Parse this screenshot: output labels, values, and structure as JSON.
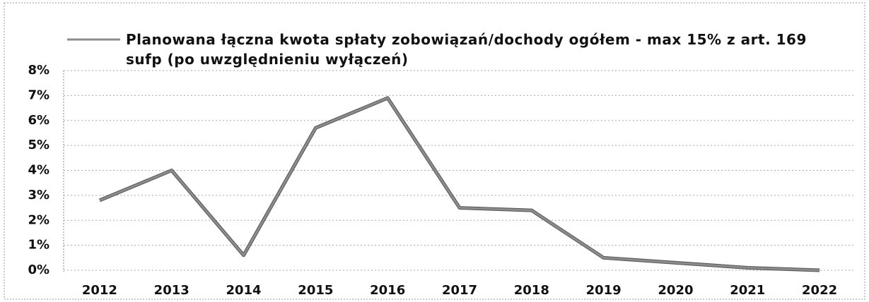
{
  "chart_data": {
    "type": "line",
    "categories": [
      "2012",
      "2013",
      "2014",
      "2015",
      "2016",
      "2017",
      "2018",
      "2019",
      "2020",
      "2021",
      "2022"
    ],
    "series": [
      {
        "name": "Planowana łączna kwota spłaty zobowiązań/dochody ogółem - max 15% z art. 169 sufp (po uwzględnieniu wyłączeń)",
        "color": "#8c8c8c",
        "values": [
          2.8,
          4.0,
          0.6,
          5.7,
          6.9,
          2.5,
          2.4,
          0.5,
          0.3,
          0.1,
          0.0
        ]
      }
    ],
    "ylim": [
      0,
      8
    ],
    "yticks": [
      {
        "value": 0,
        "label": "0%"
      },
      {
        "value": 1,
        "label": "1%"
      },
      {
        "value": 2,
        "label": "2%"
      },
      {
        "value": 3,
        "label": "3%"
      },
      {
        "value": 4,
        "label": "4%"
      },
      {
        "value": 5,
        "label": "5%"
      },
      {
        "value": 6,
        "label": "6%"
      },
      {
        "value": 7,
        "label": "7%"
      },
      {
        "value": 8,
        "label": "8%"
      }
    ],
    "grid": true,
    "legend": "top"
  }
}
